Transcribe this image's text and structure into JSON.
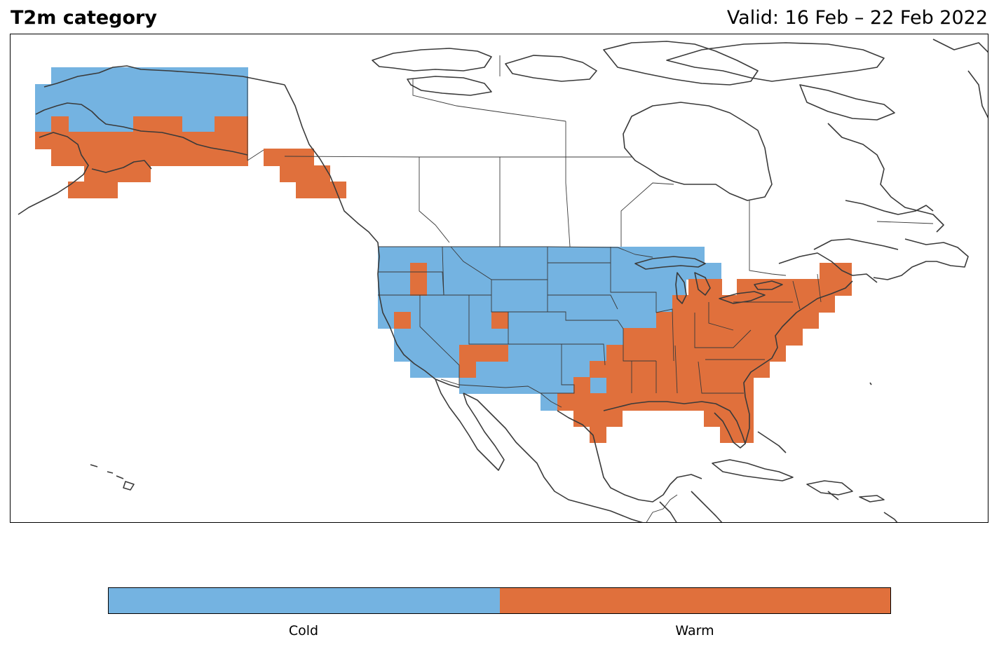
{
  "title_left": "T2m category",
  "title_right": "Valid: 16 Feb – 22 Feb 2022",
  "legend": {
    "categories": [
      {
        "label": "Cold",
        "color": "#74b3e1"
      },
      {
        "label": "Warm",
        "color": "#e0703c"
      }
    ]
  },
  "colors": {
    "cold": "#74b3e1",
    "warm": "#e0703c",
    "coastline": "#3a3a3a"
  }
}
